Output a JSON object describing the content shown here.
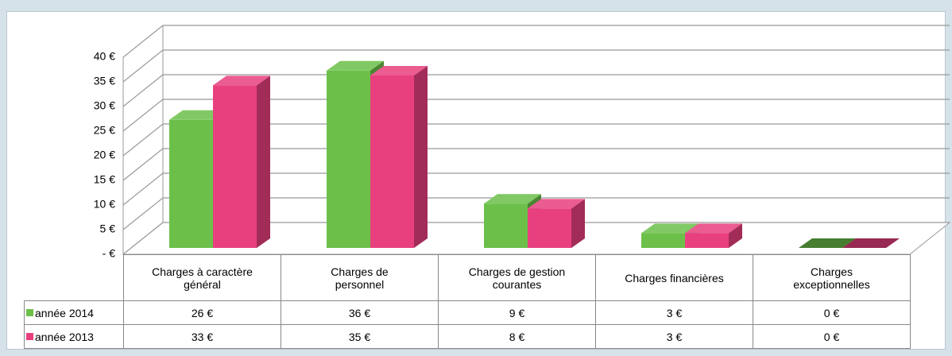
{
  "chart_data": {
    "type": "bar3d",
    "categories": [
      "Charges à caractère général",
      "Charges de personnel",
      "Charges de gestion courantes",
      "Charges financières",
      "Charges exceptionnelles"
    ],
    "series": [
      {
        "name": "année 2014",
        "color": "#6cc04a",
        "values": [
          26,
          36,
          9,
          3,
          0
        ],
        "value_labels": [
          "26 €",
          "36 €",
          "9 €",
          "3 €",
          "0 €"
        ]
      },
      {
        "name": "année 2013",
        "color": "#e8407e",
        "values": [
          33,
          35,
          8,
          3,
          0
        ],
        "value_labels": [
          "33 €",
          "35 €",
          "8 €",
          "3 €",
          "0 €"
        ]
      }
    ],
    "ylim": [
      0,
      40
    ],
    "yticks": [
      {
        "value": 0,
        "label": "-  €"
      },
      {
        "value": 5,
        "label": "5 €"
      },
      {
        "value": 10,
        "label": "10 €"
      },
      {
        "value": 15,
        "label": "15 €"
      },
      {
        "value": 20,
        "label": "20 €"
      },
      {
        "value": 25,
        "label": "25 €"
      },
      {
        "value": 30,
        "label": "30 €"
      },
      {
        "value": 35,
        "label": "35 €"
      },
      {
        "value": 40,
        "label": "40 €"
      }
    ],
    "grid": true
  }
}
